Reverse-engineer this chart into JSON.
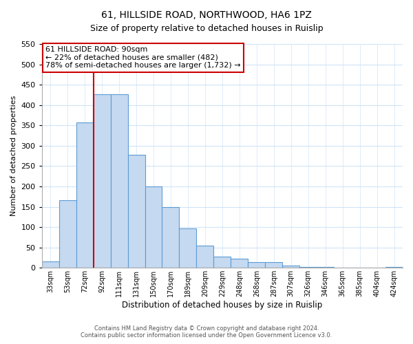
{
  "title": "61, HILLSIDE ROAD, NORTHWOOD, HA6 1PZ",
  "subtitle": "Size of property relative to detached houses in Ruislip",
  "xlabel": "Distribution of detached houses by size in Ruislip",
  "ylabel": "Number of detached properties",
  "categories": [
    "33sqm",
    "53sqm",
    "72sqm",
    "92sqm",
    "111sqm",
    "131sqm",
    "150sqm",
    "170sqm",
    "189sqm",
    "209sqm",
    "229sqm",
    "248sqm",
    "268sqm",
    "287sqm",
    "307sqm",
    "326sqm",
    "346sqm",
    "365sqm",
    "385sqm",
    "404sqm",
    "424sqm"
  ],
  "values": [
    15,
    167,
    357,
    427,
    427,
    277,
    200,
    150,
    97,
    55,
    28,
    22,
    14,
    14,
    5,
    3,
    2,
    1,
    0,
    0,
    2
  ],
  "bar_color": "#c5d9f0",
  "bar_edge_color": "#5b9bd5",
  "vline_color": "#cc0000",
  "ylim": [
    0,
    550
  ],
  "yticks": [
    0,
    50,
    100,
    150,
    200,
    250,
    300,
    350,
    400,
    450,
    500,
    550
  ],
  "annotation_title": "61 HILLSIDE ROAD: 90sqm",
  "annotation_line1": "← 22% of detached houses are smaller (482)",
  "annotation_line2": "78% of semi-detached houses are larger (1,732) →",
  "annotation_box_color": "#ffffff",
  "annotation_box_edge": "#cc0000",
  "footer1": "Contains HM Land Registry data © Crown copyright and database right 2024.",
  "footer2": "Contains public sector information licensed under the Open Government Licence v3.0.",
  "background_color": "#ffffff",
  "grid_color": "#d0e4f7"
}
